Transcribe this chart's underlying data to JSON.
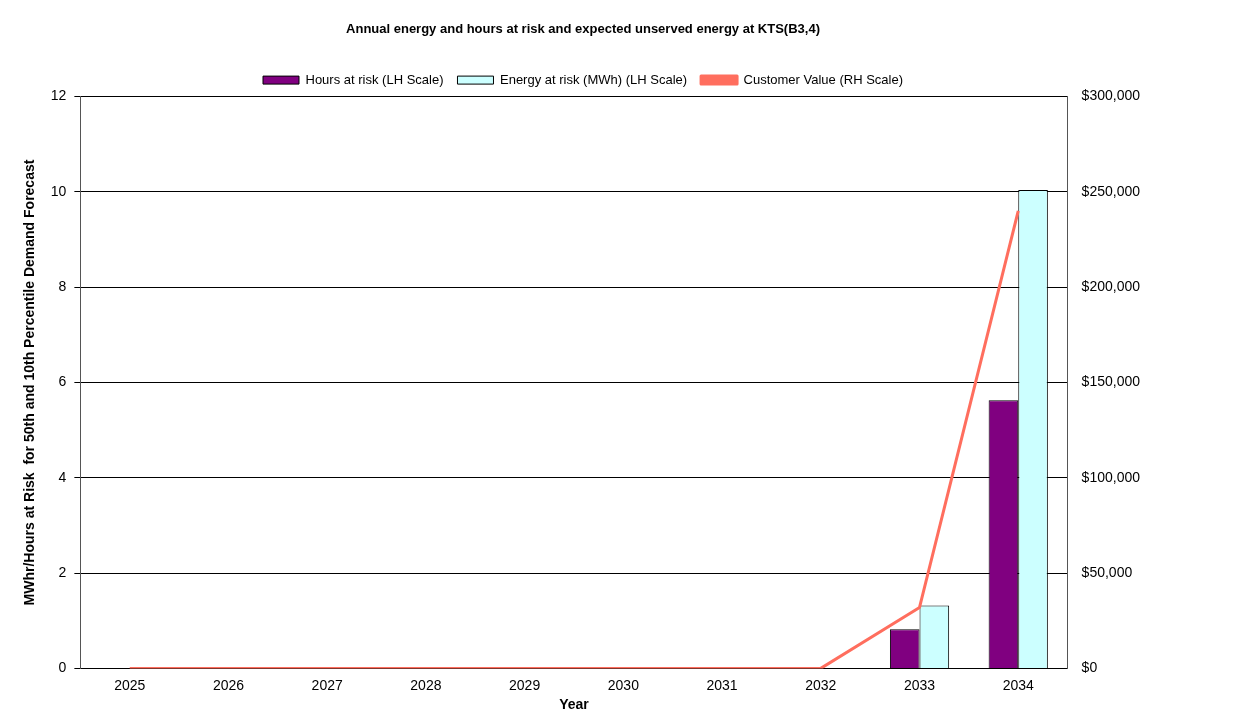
{
  "chart_data": {
    "type": "bar",
    "title": "Annual energy and hours at risk and expected unserved energy at KTS(B3,4)",
    "xlabel": "Year",
    "ylabel": "MWhr/Hours at Risk  for 50th and 10th Percentile Demand Forecast",
    "categories": [
      "2025",
      "2026",
      "2027",
      "2028",
      "2029",
      "2030",
      "2031",
      "2032",
      "2033",
      "2034"
    ],
    "series": [
      {
        "name": "Hours at risk (LH Scale)",
        "color": "#800080",
        "values": [
          0,
          0,
          0,
          0,
          0,
          0,
          0,
          0,
          0.82,
          5.63
        ]
      },
      {
        "name": "Energy at risk (MWh) (LH Scale)",
        "color": "#ccffff",
        "values": [
          0,
          0,
          0,
          0,
          0,
          0,
          0,
          0,
          1.32,
          10.04
        ]
      },
      {
        "name": "Customer Value (RH Scale)",
        "type": "line",
        "axis": "y2",
        "color": "#ff6e5e",
        "values": [
          0,
          0,
          0,
          0,
          0,
          0,
          0,
          0,
          32000,
          240000
        ]
      }
    ],
    "ylim": [
      0,
      12
    ],
    "yticks": [
      0,
      2,
      4,
      6,
      8,
      10,
      12
    ],
    "y2lim": [
      0,
      300000
    ],
    "y2ticks": [
      {
        "value": 0,
        "label": "$0"
      },
      {
        "value": 50000,
        "label": "$50,000"
      },
      {
        "value": 100000,
        "label": "$100,000"
      },
      {
        "value": 150000,
        "label": "$150,000"
      },
      {
        "value": 200000,
        "label": "$200,000"
      },
      {
        "value": 250000,
        "label": "$250,000"
      },
      {
        "value": 300000,
        "label": "$300,000"
      }
    ],
    "grid": "y",
    "legend": "top",
    "marker": "none"
  }
}
